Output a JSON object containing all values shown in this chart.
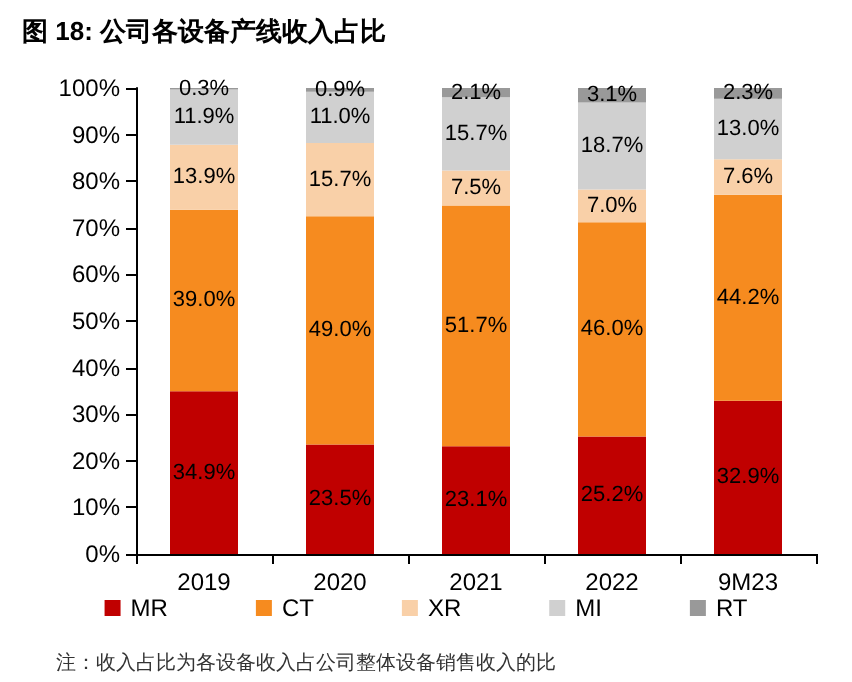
{
  "chart_data": {
    "type": "bar",
    "title": "图 18: 公司各设备产线收入占比",
    "categories": [
      "2019",
      "2020",
      "2021",
      "2022",
      "9M23"
    ],
    "stacked": true,
    "series": [
      {
        "name": "MR",
        "color": "#c00000",
        "values": [
          34.9,
          23.5,
          23.1,
          25.2,
          32.9
        ],
        "value_labels": [
          "34.9%",
          "23.5%",
          "23.1%",
          "25.2%",
          "32.9%"
        ]
      },
      {
        "name": "CT",
        "color": "#f68b1f",
        "values": [
          39.0,
          49.0,
          51.7,
          46.0,
          44.2
        ],
        "value_labels": [
          "39.0%",
          "49.0%",
          "51.7%",
          "46.0%",
          "44.2%"
        ]
      },
      {
        "name": "XR",
        "color": "#f9d0a8",
        "values": [
          13.9,
          15.7,
          7.5,
          7.0,
          7.6
        ],
        "value_labels": [
          "13.9%",
          "15.7%",
          "7.5%",
          "7.0%",
          "7.6%"
        ]
      },
      {
        "name": "MI",
        "color": "#d0d0d0",
        "values": [
          11.9,
          11.0,
          15.7,
          18.7,
          13.0
        ],
        "value_labels": [
          "11.9%",
          "11.0%",
          "15.7%",
          "18.7%",
          "13.0%"
        ]
      },
      {
        "name": "RT",
        "color": "#999999",
        "values": [
          0.3,
          0.9,
          2.1,
          3.1,
          2.3
        ],
        "value_labels": [
          "0.3%",
          "0.9%",
          "2.1%",
          "3.1%",
          "2.3%"
        ]
      }
    ],
    "ylim": [
      0,
      100
    ],
    "yticks": [
      {
        "value": 0,
        "label": "0%"
      },
      {
        "value": 10,
        "label": "10%"
      },
      {
        "value": 20,
        "label": "20%"
      },
      {
        "value": 30,
        "label": "30%"
      },
      {
        "value": 40,
        "label": "40%"
      },
      {
        "value": 50,
        "label": "50%"
      },
      {
        "value": 60,
        "label": "60%"
      },
      {
        "value": 70,
        "label": "70%"
      },
      {
        "value": 80,
        "label": "80%"
      },
      {
        "value": 90,
        "label": "90%"
      },
      {
        "value": 100,
        "label": "100%"
      }
    ],
    "grid": false,
    "legend": "bottom",
    "annotations": [
      "注：收入占比为各设备收入占公司整体设备销售收入的比"
    ]
  }
}
